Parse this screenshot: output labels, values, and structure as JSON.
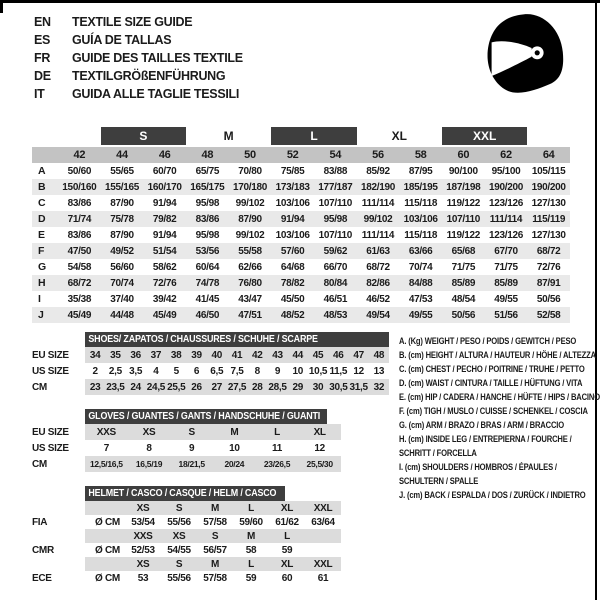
{
  "colors": {
    "dark_bar": "#3e3e3e",
    "number_row": "#c3c3c3",
    "row_stripe": "#e9e9e9",
    "band": "#dcdcdc",
    "border": "#000000"
  },
  "languages": [
    {
      "code": "EN",
      "text": "TEXTILE SIZE GUIDE"
    },
    {
      "code": "ES",
      "text": "GUÍA DE TALLAS"
    },
    {
      "code": "FR",
      "text": "GUIDE DES TAILLES TEXTILE"
    },
    {
      "code": "DE",
      "text": "TEXTILGRÖßENFÜHRUNG"
    },
    {
      "code": "IT",
      "text": "GUIDA ALLE TAGLIE TESSILI"
    }
  ],
  "helmet_icon": "full-face-helmet-icon",
  "main_table": {
    "size_groups": [
      {
        "label": "S",
        "dark": true,
        "columns": [
          "44",
          "46"
        ]
      },
      {
        "label": "M",
        "dark": false,
        "columns": [
          "48",
          "50"
        ]
      },
      {
        "label": "L",
        "dark": true,
        "columns": [
          "52",
          "54"
        ]
      },
      {
        "label": "XL",
        "dark": false,
        "columns": [
          "56",
          "58"
        ]
      },
      {
        "label": "XXL",
        "dark": true,
        "columns": [
          "60",
          "62"
        ]
      }
    ],
    "columns": [
      "42",
      "44",
      "46",
      "48",
      "50",
      "52",
      "54",
      "56",
      "58",
      "60",
      "62",
      "64"
    ],
    "rows": [
      {
        "label": "A",
        "values": [
          "50/60",
          "55/65",
          "60/70",
          "65/75",
          "70/80",
          "75/85",
          "83/88",
          "85/92",
          "87/95",
          "90/100",
          "95/100",
          "105/115"
        ]
      },
      {
        "label": "B",
        "values": [
          "150/160",
          "155/165",
          "160/170",
          "165/175",
          "170/180",
          "173/183",
          "177/187",
          "182/190",
          "185/195",
          "187/198",
          "190/200",
          "190/200"
        ]
      },
      {
        "label": "C",
        "values": [
          "83/86",
          "87/90",
          "91/94",
          "95/98",
          "99/102",
          "103/106",
          "107/110",
          "111/114",
          "115/118",
          "119/122",
          "123/126",
          "127/130"
        ]
      },
      {
        "label": "D",
        "values": [
          "71/74",
          "75/78",
          "79/82",
          "83/86",
          "87/90",
          "91/94",
          "95/98",
          "99/102",
          "103/106",
          "107/110",
          "111/114",
          "115/119"
        ]
      },
      {
        "label": "E",
        "values": [
          "83/86",
          "87/90",
          "91/94",
          "95/98",
          "99/102",
          "103/106",
          "107/110",
          "111/114",
          "115/118",
          "119/122",
          "123/126",
          "127/130"
        ]
      },
      {
        "label": "F",
        "values": [
          "47/50",
          "49/52",
          "51/54",
          "53/56",
          "55/58",
          "57/60",
          "59/62",
          "61/63",
          "63/66",
          "65/68",
          "67/70",
          "68/72"
        ]
      },
      {
        "label": "G",
        "values": [
          "54/58",
          "56/60",
          "58/62",
          "60/64",
          "62/66",
          "64/68",
          "66/70",
          "68/72",
          "70/74",
          "71/75",
          "71/75",
          "72/76"
        ]
      },
      {
        "label": "H",
        "values": [
          "68/72",
          "70/74",
          "72/76",
          "74/78",
          "76/80",
          "78/82",
          "80/84",
          "82/86",
          "84/88",
          "85/89",
          "85/89",
          "87/91"
        ]
      },
      {
        "label": "I",
        "values": [
          "35/38",
          "37/40",
          "39/42",
          "41/45",
          "43/47",
          "45/50",
          "46/51",
          "46/52",
          "47/53",
          "48/54",
          "49/55",
          "50/56"
        ]
      },
      {
        "label": "J",
        "values": [
          "45/49",
          "44/48",
          "45/49",
          "46/50",
          "47/51",
          "48/52",
          "48/53",
          "49/54",
          "49/55",
          "50/56",
          "51/56",
          "52/58"
        ]
      }
    ]
  },
  "shoes": {
    "title": "SHOES/ ZAPATOS / CHAUSSURES / SCHUHE / SCARPE",
    "rows": [
      {
        "label": "EU SIZE",
        "shaded": true,
        "values": [
          "34",
          "35",
          "36",
          "37",
          "38",
          "39",
          "40",
          "41",
          "42",
          "43",
          "44",
          "45",
          "46",
          "47",
          "48"
        ]
      },
      {
        "label": "US SIZE",
        "shaded": false,
        "values": [
          "2",
          "2,5",
          "3,5",
          "4",
          "5",
          "6",
          "6,5",
          "7,5",
          "8",
          "9",
          "10",
          "10,5",
          "11,5",
          "12",
          "13"
        ]
      },
      {
        "label": "CM",
        "shaded": true,
        "values": [
          "23",
          "23,5",
          "24",
          "24,5",
          "25,5",
          "26",
          "27",
          "27,5",
          "28",
          "28,5",
          "29",
          "30",
          "30,5",
          "31,5",
          "32"
        ]
      }
    ]
  },
  "gloves": {
    "title": "GLOVES / GUANTES / GANTS / HANDSCHUHE / GUANTI",
    "rows": [
      {
        "label": "EU SIZE",
        "shaded": true,
        "values": [
          "XXS",
          "XS",
          "S",
          "M",
          "L",
          "XL"
        ]
      },
      {
        "label": "US SIZE",
        "shaded": false,
        "values": [
          "7",
          "8",
          "9",
          "10",
          "11",
          "12"
        ]
      },
      {
        "label": "CM",
        "shaded": true,
        "values": [
          "12,5/16,5",
          "16,5/19",
          "18/21,5",
          "20/24",
          "23/26,5",
          "25,5/30"
        ]
      }
    ]
  },
  "helmet": {
    "title": "HELMET / CASCO / CASQUE / HELM / CASCO",
    "sections": [
      {
        "label": "FIA",
        "unit": "Ø CM",
        "sizes": [
          "XS",
          "S",
          "M",
          "L",
          "XL",
          "XXL"
        ],
        "values": [
          "53/54",
          "55/56",
          "57/58",
          "59/60",
          "61/62",
          "63/64"
        ]
      },
      {
        "label": "CMR",
        "unit": "Ø CM",
        "sizes": [
          "XXS",
          "XS",
          "S",
          "M",
          "L",
          ""
        ],
        "values": [
          "52/53",
          "54/55",
          "56/57",
          "58",
          "59",
          ""
        ]
      },
      {
        "label": "ECE",
        "unit": "Ø CM",
        "sizes": [
          "XS",
          "S",
          "M",
          "L",
          "XL",
          "XXL"
        ],
        "values": [
          "53",
          "55/56",
          "57/58",
          "59",
          "60",
          "61"
        ]
      }
    ]
  },
  "legend": {
    "items": [
      {
        "lines": [
          "A. (Kg) WEIGHT / PESO / POIDS / GEWITCH / PESO"
        ]
      },
      {
        "lines": [
          "B. (cm) HEIGHT / ALTURA / HAUTEUR / HÖHE / ALTEZZA"
        ]
      },
      {
        "lines": [
          "C. (cm) CHEST / PECHO / POITRINE / TRUHE / PETTO"
        ]
      },
      {
        "lines": [
          "D. (cm) WAIST / CINTURA / TAILLE / HÜFTUNG / VITA"
        ]
      },
      {
        "lines": [
          "E. (cm) HIP / CADERA / HANCHE / HÜFTE / HIPS /  BACINO"
        ]
      },
      {
        "lines": [
          "F. (cm) TIGH / MUSLO / CUISSE / SCHENKEL / COSCIA"
        ]
      },
      {
        "lines": [
          "G. (cm) ARM  / BRAZO / BRAS / ARM / BRACCIO"
        ]
      },
      {
        "lines": [
          "H. (cm) INSIDE LEG / ENTREPIERNA / FOURCHE /",
          "SCHRITT / FORCELLA"
        ]
      },
      {
        "lines": [
          "I.  (cm) SHOULDERS / HOMBROS / ÉPAULES /",
          "SCHULTERN / SPALLE"
        ]
      },
      {
        "lines": [
          "J. (cm) BACK / ESPALDA / DOS / ZURÜCK / INDIETRO"
        ]
      }
    ]
  }
}
